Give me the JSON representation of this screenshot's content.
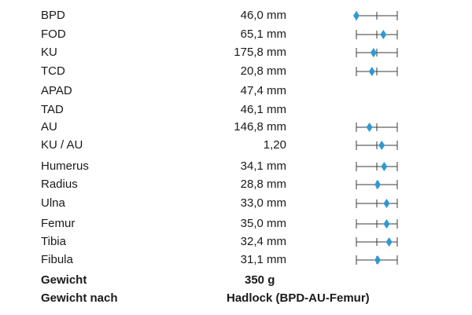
{
  "measurements": [
    {
      "label": "BPD",
      "value": "46,0 mm",
      "gauge": {
        "shown": true,
        "marker": 0.0
      }
    },
    {
      "label": "FOD",
      "value": "65,1 mm",
      "gauge": {
        "shown": true,
        "marker": 0.66
      }
    },
    {
      "label": "KU",
      "value": "175,8 mm",
      "gauge": {
        "shown": true,
        "marker": 0.42
      }
    },
    {
      "label": "TCD",
      "value": "20,8 mm",
      "gauge": {
        "shown": true,
        "marker": 0.38
      }
    },
    {
      "label": "APAD",
      "value": "47,4 mm",
      "gauge": {
        "shown": false
      }
    },
    {
      "label": "TAD",
      "value": "46,1 mm",
      "gauge": {
        "shown": false
      }
    },
    {
      "label": "AU",
      "value": "146,8 mm",
      "gauge": {
        "shown": true,
        "marker": 0.32
      }
    },
    {
      "label": "KU / AU",
      "value": "1,20",
      "gauge": {
        "shown": true,
        "marker": 0.62
      }
    },
    {
      "label": "Humerus",
      "value": "34,1 mm",
      "gauge": {
        "shown": true,
        "marker": 0.68
      }
    },
    {
      "label": "Radius",
      "value": "28,8 mm",
      "gauge": {
        "shown": true,
        "marker": 0.52
      }
    },
    {
      "label": "Ulna",
      "value": "33,0 mm",
      "gauge": {
        "shown": true,
        "marker": 0.74
      }
    },
    {
      "label": "Femur",
      "value": "35,0 mm",
      "gauge": {
        "shown": true,
        "marker": 0.74
      }
    },
    {
      "label": "Tibia",
      "value": "32,4 mm",
      "gauge": {
        "shown": true,
        "marker": 0.8
      }
    },
    {
      "label": "Fibula",
      "value": "31,1 mm",
      "gauge": {
        "shown": true,
        "marker": 0.52
      }
    }
  ],
  "weight": {
    "label": "Gewicht",
    "value": "350 g"
  },
  "weight_method": {
    "label": "Gewicht nach",
    "value": "Hadlock (BPD-AU-Femur)"
  },
  "colors": {
    "marker": "#2e9ad4",
    "gauge_line": "#3a3a3a",
    "text": "#1a1a1a"
  }
}
